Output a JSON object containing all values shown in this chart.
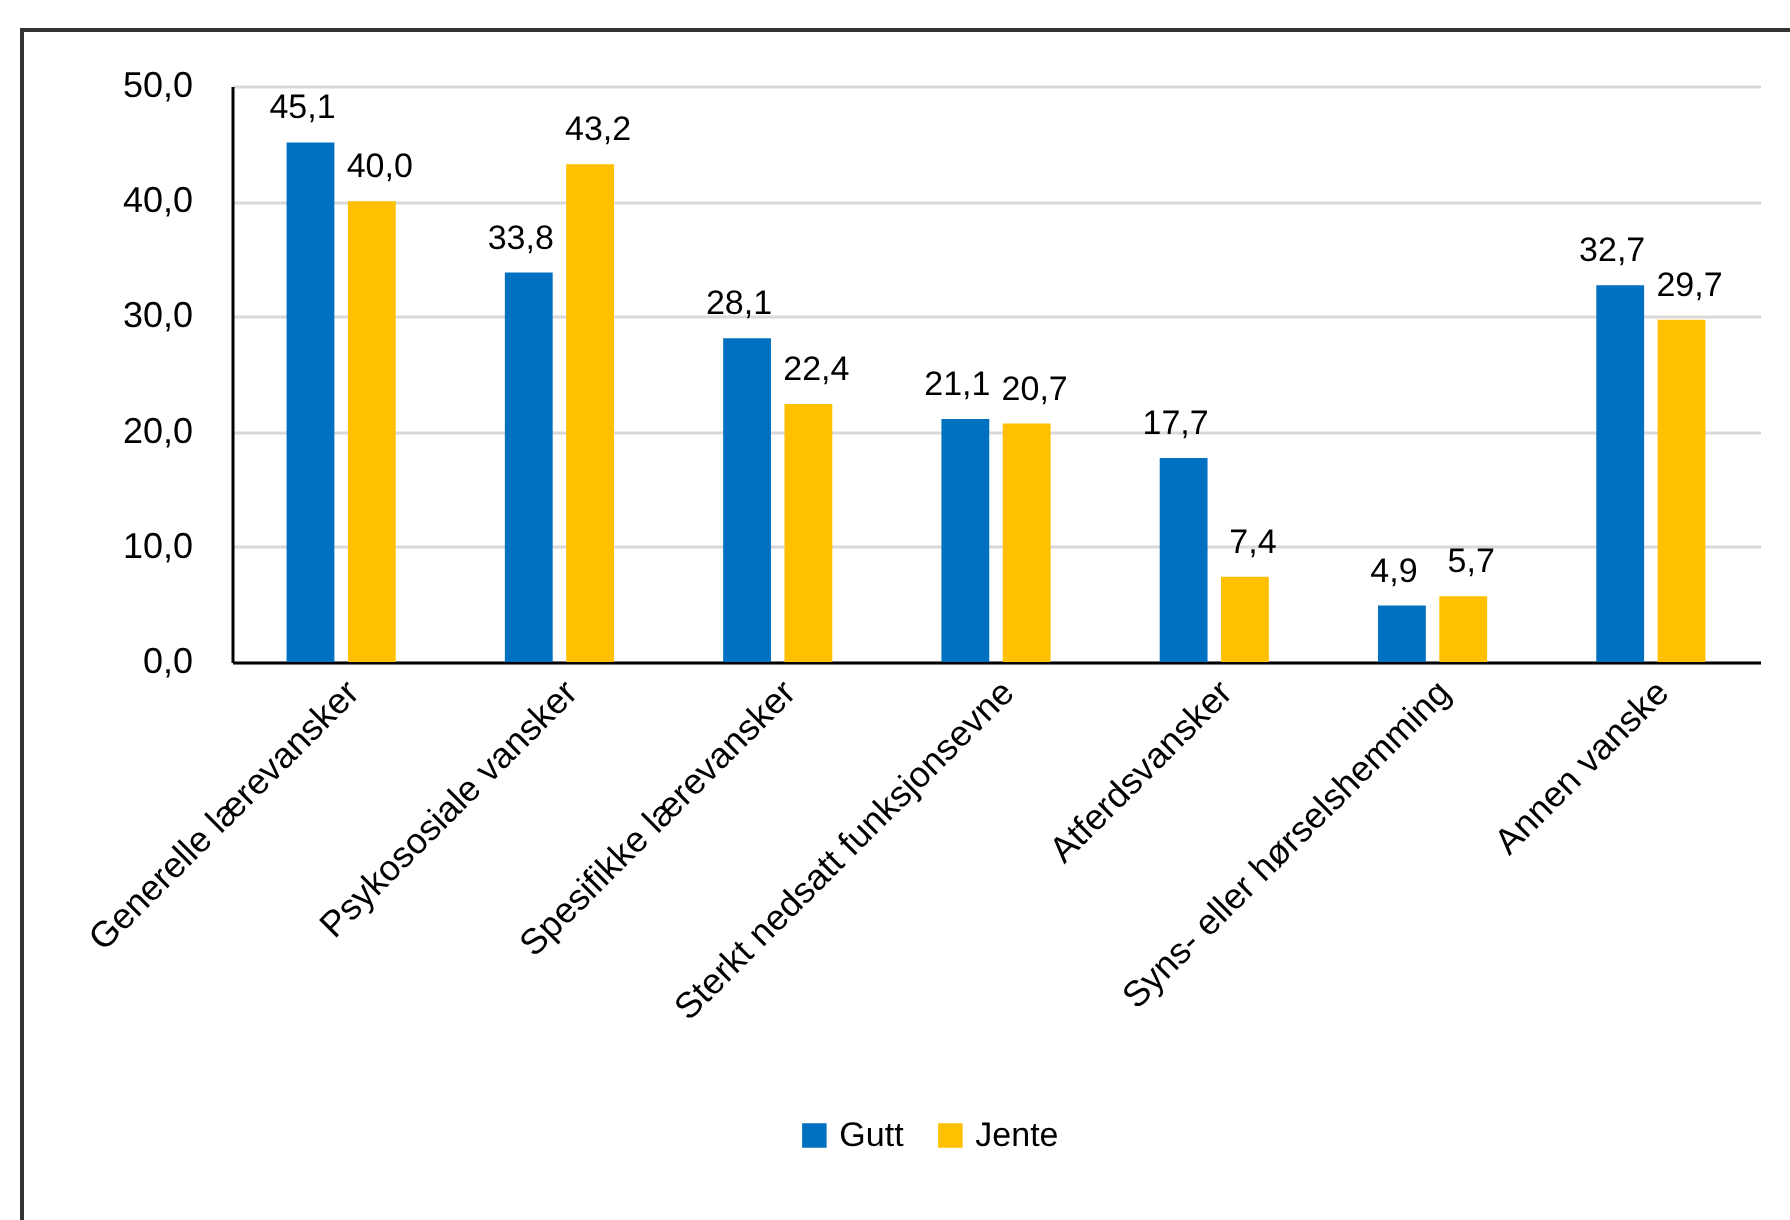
{
  "chart_data": {
    "type": "bar",
    "categories": [
      "Generelle lærevansker",
      "Psykososiale vansker",
      "Spesifikke lærevansker",
      "Sterkt nedsatt funksjonsevne",
      "Atferdsvansker",
      "Syns- eller hørselshemming",
      "Annen vanske"
    ],
    "series": [
      {
        "name": "Gutt",
        "color": "#0070c0",
        "values": [
          45.1,
          33.8,
          28.1,
          21.1,
          17.7,
          4.9,
          32.7
        ],
        "value_labels": [
          "45,1",
          "33,8",
          "28,1",
          "21,1",
          "17,7",
          "4,9",
          "32,7"
        ]
      },
      {
        "name": "Jente",
        "color": "#ffc000",
        "values": [
          40.0,
          43.2,
          22.4,
          20.7,
          7.4,
          5.7,
          29.7
        ],
        "value_labels": [
          "40,0",
          "43,2",
          "22,4",
          "20,7",
          "7,4",
          "5,7",
          "29,7"
        ]
      }
    ],
    "ylim": [
      0,
      50
    ],
    "yticks": [
      {
        "value": 0,
        "label": "0,0"
      },
      {
        "value": 10,
        "label": "10,0"
      },
      {
        "value": 20,
        "label": "20,0"
      },
      {
        "value": 30,
        "label": "30,0"
      },
      {
        "value": 40,
        "label": "40,0"
      },
      {
        "value": 50,
        "label": "50,0"
      }
    ],
    "grid": "y",
    "legend": "bottom"
  }
}
